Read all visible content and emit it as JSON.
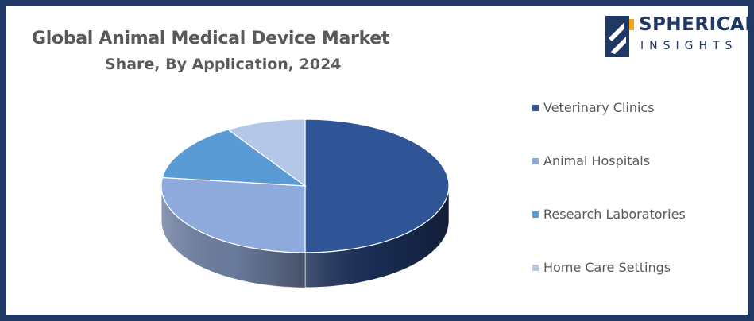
{
  "header": {
    "title": "Global Animal Medical Device Market",
    "subtitle": "Share, By Application, 2024"
  },
  "logo": {
    "word1": "SPHERICAL",
    "word2": "INSIGHTS"
  },
  "chart_data": {
    "type": "pie",
    "title": "Global Animal Medical Device Market",
    "subtitle": "Share, By Application, 2024",
    "legend_position": "right",
    "three_d": true,
    "categories": [
      "Veterinary Clinics",
      "Animal Hospitals",
      "Research Laboratories",
      "Home Care Settings"
    ],
    "values": [
      50,
      27,
      14,
      9
    ],
    "colors": [
      "#2f5597",
      "#8faadc",
      "#5b9bd5",
      "#b4c7e7"
    ],
    "side_colors": [
      "#1b2e57",
      "#6f80a3",
      "#3f73a3",
      "#8c9bb8"
    ]
  }
}
